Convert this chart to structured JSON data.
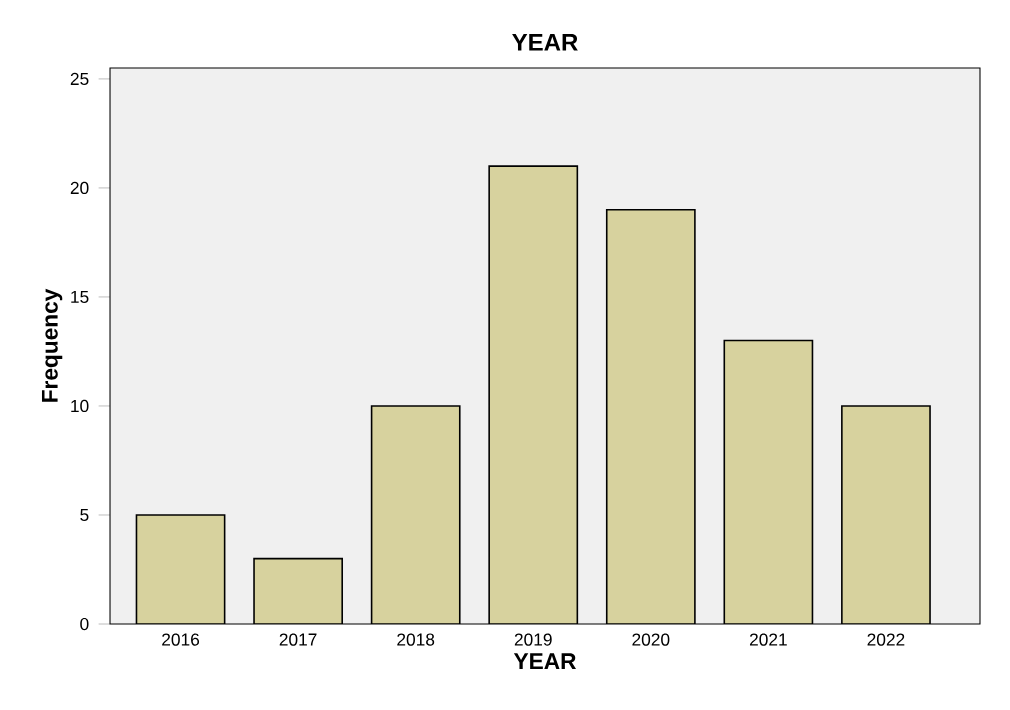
{
  "chart_data": {
    "type": "bar",
    "title": "YEAR",
    "xlabel": "YEAR",
    "ylabel": "Frequency",
    "categories": [
      "2016",
      "2017",
      "2018",
      "2019",
      "2020",
      "2021",
      "2022"
    ],
    "values": [
      5,
      3,
      10,
      21,
      19,
      13,
      10
    ],
    "color": "#d7d29e",
    "ylim": [
      0,
      25.5
    ],
    "yticks": [
      0,
      5,
      10,
      15,
      20,
      25
    ],
    "grid": false
  }
}
